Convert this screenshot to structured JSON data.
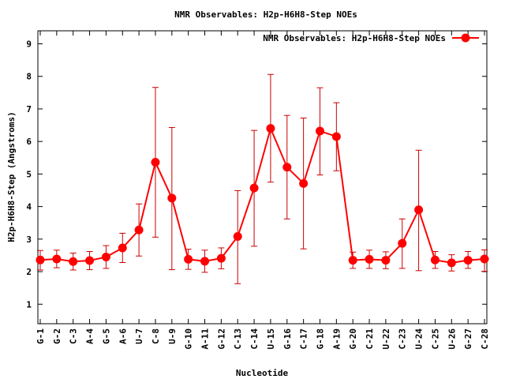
{
  "chart_data": {
    "type": "line",
    "title": "NMR Observables: H2p-H6H8-Step NOEs",
    "xlabel": "Nucleotide",
    "ylabel": "H2p-H6H8-Step (Angstroms)",
    "ylim": [
      0.4,
      9.4
    ],
    "yticks": [
      1,
      2,
      3,
      4,
      5,
      6,
      7,
      8,
      9
    ],
    "grid": false,
    "legend_position": "top-right",
    "categories": [
      "G-1",
      "G-2",
      "C-3",
      "A-4",
      "G-5",
      "A-6",
      "U-7",
      "C-8",
      "U-9",
      "G-10",
      "A-11",
      "G-12",
      "C-13",
      "C-14",
      "U-15",
      "G-16",
      "C-17",
      "G-18",
      "A-19",
      "G-20",
      "C-21",
      "U-22",
      "C-23",
      "U-24",
      "C-25",
      "U-26",
      "G-27",
      "C-28"
    ],
    "series": [
      {
        "name": "NMR Observables: H2p-H6H8-Step NOEs",
        "color": "#ff0000",
        "errorbar_color": "#cc0000",
        "values": [
          2.36,
          2.39,
          2.31,
          2.34,
          2.45,
          2.73,
          3.28,
          5.36,
          4.26,
          2.38,
          2.32,
          2.41,
          3.08,
          4.57,
          6.4,
          5.21,
          4.71,
          6.32,
          6.15,
          2.35,
          2.38,
          2.35,
          2.87,
          3.9,
          2.36,
          2.27,
          2.35,
          2.39
        ],
        "err_low": [
          2.05,
          2.12,
          2.05,
          2.06,
          2.1,
          2.28,
          2.48,
          3.06,
          2.06,
          2.07,
          1.98,
          2.09,
          1.63,
          2.78,
          4.75,
          3.62,
          2.7,
          4.97,
          5.1,
          2.1,
          2.1,
          2.09,
          2.1,
          2.03,
          2.1,
          2.02,
          2.1,
          2.01
        ],
        "err_high": [
          2.65,
          2.66,
          2.57,
          2.62,
          2.8,
          3.18,
          4.08,
          7.66,
          6.43,
          2.69,
          2.66,
          2.73,
          4.49,
          6.34,
          8.06,
          6.8,
          6.72,
          7.65,
          7.19,
          2.6,
          2.66,
          2.61,
          3.62,
          5.73,
          2.62,
          2.52,
          2.62,
          2.67
        ]
      }
    ]
  }
}
